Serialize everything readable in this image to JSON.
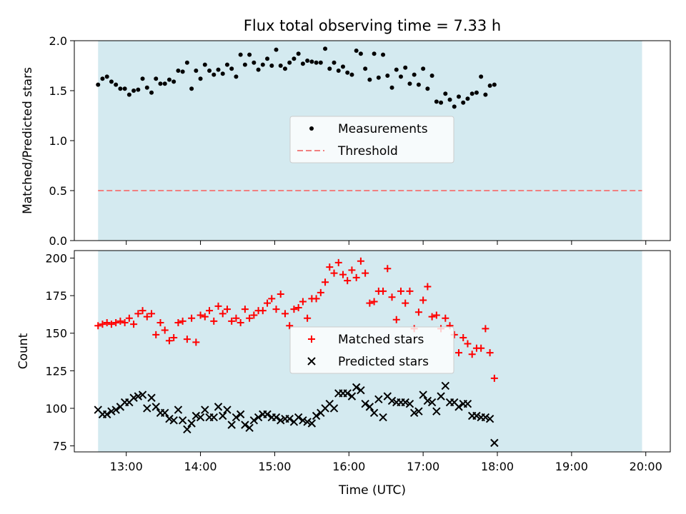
{
  "chart_data": [
    {
      "type": "scatter",
      "title": "Flux total observing time = 7.33 h",
      "ylabel": "Matched/Predicted stars",
      "ylim": [
        0,
        2.0
      ],
      "yticks": [
        "0.0",
        "0.5",
        "1.0",
        "1.5",
        "2.0"
      ],
      "ytick_values": [
        0,
        0.5,
        1.0,
        1.5,
        2.0
      ],
      "xlim_hours": [
        12.3,
        20.33
      ],
      "x_tick_hours": [
        13,
        14,
        15,
        16,
        17,
        18,
        19,
        20
      ],
      "x_tick_labels_shown": false,
      "shaded_span_hours": [
        12.62,
        19.95
      ],
      "shaded_color": "#d4eaf0",
      "threshold": 0.5,
      "threshold_color": "#f08080",
      "point_color": "#000000",
      "legend": {
        "placement": "center",
        "entries": [
          "Measurements",
          "Threshold"
        ]
      },
      "series": [
        {
          "name": "Measurements",
          "marker": "dot",
          "x_start_hours": 12.62,
          "x_step_hours": 0.06,
          "values": [
            1.56,
            1.62,
            1.64,
            1.59,
            1.56,
            1.52,
            1.52,
            1.46,
            1.5,
            1.51,
            1.62,
            1.53,
            1.48,
            1.62,
            1.57,
            1.57,
            1.61,
            1.59,
            1.7,
            1.69,
            1.78,
            1.52,
            1.7,
            1.62,
            1.76,
            1.7,
            1.66,
            1.71,
            1.67,
            1.76,
            1.72,
            1.64,
            1.86,
            1.76,
            1.86,
            1.78,
            1.71,
            1.76,
            1.82,
            1.75,
            1.91,
            1.75,
            1.72,
            1.78,
            1.82,
            1.87,
            1.77,
            1.8,
            1.79,
            1.78,
            1.78,
            1.92,
            1.72,
            1.78,
            1.7,
            1.74,
            1.68,
            1.66,
            1.9,
            1.87,
            1.72,
            1.61,
            1.87,
            1.63,
            1.86,
            1.65,
            1.53,
            1.71,
            1.64,
            1.73,
            1.57,
            1.66,
            1.56,
            1.72,
            1.52,
            1.65,
            1.39,
            1.38,
            1.47,
            1.41,
            1.34,
            1.44,
            1.38,
            1.42,
            1.47,
            1.48,
            1.64,
            1.46,
            1.55,
            1.56
          ]
        },
        {
          "name": "Threshold",
          "marker": "dashed-line",
          "value": 0.5
        }
      ]
    },
    {
      "type": "scatter",
      "xlabel": "Time (UTC)",
      "ylabel": "Count",
      "ylim": [
        71,
        205
      ],
      "yticks": [
        "75",
        "100",
        "125",
        "150",
        "175",
        "200"
      ],
      "ytick_values": [
        75,
        100,
        125,
        150,
        175,
        200
      ],
      "xlim_hours": [
        12.3,
        20.33
      ],
      "x_tick_hours": [
        13,
        14,
        15,
        16,
        17,
        18,
        19,
        20
      ],
      "x_tick_labels": [
        "13:00",
        "14:00",
        "15:00",
        "16:00",
        "17:00",
        "18:00",
        "19:00",
        "20:00"
      ],
      "shaded_span_hours": [
        12.62,
        19.95
      ],
      "shaded_color": "#d4eaf0",
      "legend": {
        "placement": "center",
        "entries": [
          "Matched stars",
          "Predicted stars"
        ]
      },
      "series": [
        {
          "name": "Matched stars",
          "marker": "plus",
          "color": "#ff0000",
          "x_start_hours": 12.62,
          "x_step_hours": 0.06,
          "values": [
            155,
            156,
            157,
            156,
            157,
            158,
            157,
            160,
            156,
            163,
            165,
            161,
            163,
            149,
            157,
            152,
            145,
            147,
            157,
            158,
            146,
            160,
            144,
            162,
            161,
            165,
            158,
            168,
            163,
            166,
            158,
            160,
            157,
            166,
            160,
            162,
            165,
            165,
            170,
            173,
            166,
            176,
            163,
            155,
            166,
            167,
            171,
            160,
            173,
            173,
            177,
            184,
            194,
            190,
            197,
            189,
            185,
            192,
            187,
            198,
            190,
            170,
            171,
            178,
            178,
            193,
            174,
            159,
            178,
            170,
            178,
            153,
            164,
            172,
            181,
            161,
            162,
            153,
            160,
            155,
            149,
            137,
            147,
            143,
            136,
            140,
            140,
            153,
            137,
            120
          ]
        },
        {
          "name": "Predicted stars",
          "marker": "x",
          "color": "#000000",
          "x_start_hours": 12.62,
          "x_step_hours": 0.06,
          "values": [
            99,
            96,
            96,
            98,
            99,
            101,
            104,
            104,
            107,
            108,
            109,
            100,
            107,
            101,
            97,
            97,
            93,
            92,
            99,
            92,
            86,
            90,
            95,
            94,
            99,
            94,
            94,
            101,
            95,
            99,
            89,
            94,
            96,
            89,
            87,
            92,
            94,
            96,
            96,
            94,
            94,
            92,
            93,
            93,
            91,
            94,
            92,
            91,
            90,
            95,
            97,
            100,
            103,
            100,
            110,
            110,
            110,
            108,
            114,
            112,
            103,
            101,
            97,
            106,
            94,
            108,
            105,
            104,
            104,
            104,
            103,
            97,
            98,
            109,
            105,
            104,
            98,
            108,
            115,
            104,
            104,
            101,
            103,
            103,
            95,
            95,
            94,
            94,
            93,
            77
          ]
        }
      ]
    }
  ]
}
